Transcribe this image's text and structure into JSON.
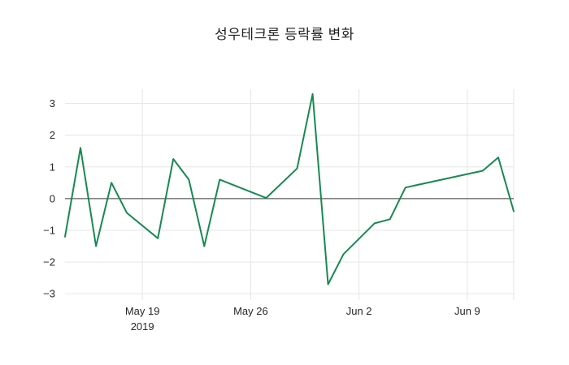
{
  "chart_data": {
    "type": "line",
    "title": "성우테크론 등락률 변화",
    "xlabel": "",
    "ylabel": "",
    "grid": true,
    "zero_line": true,
    "legend": "none",
    "line_color": "#178a50",
    "grid_color": "#e6e6e6",
    "zero_line_color": "#3a3a3a",
    "tick_color": "#262626",
    "ylim": [
      -3.2,
      3.45
    ],
    "y_ticks": [
      -3,
      -2,
      -1,
      0,
      1,
      2,
      3
    ],
    "x_range": [
      "2019-05-14",
      "2019-06-12"
    ],
    "x_ticks": [
      {
        "date": "2019-05-19",
        "label": "May 19",
        "sublabel": "2019"
      },
      {
        "date": "2019-05-26",
        "label": "May 26",
        "sublabel": ""
      },
      {
        "date": "2019-06-02",
        "label": "Jun 2",
        "sublabel": ""
      },
      {
        "date": "2019-06-09",
        "label": "Jun 9",
        "sublabel": ""
      }
    ],
    "series": [
      {
        "name": "등락률",
        "x": [
          "2019-05-14",
          "2019-05-15",
          "2019-05-16",
          "2019-05-17",
          "2019-05-18",
          "2019-05-20",
          "2019-05-21",
          "2019-05-22",
          "2019-05-23",
          "2019-05-24",
          "2019-05-27",
          "2019-05-29",
          "2019-05-30",
          "2019-05-31",
          "2019-06-01",
          "2019-06-03",
          "2019-06-04",
          "2019-06-05",
          "2019-06-10",
          "2019-06-11",
          "2019-06-12"
        ],
        "values": [
          -1.2,
          1.6,
          -1.5,
          0.5,
          -0.45,
          -1.25,
          1.25,
          0.6,
          -1.5,
          0.6,
          0.02,
          0.95,
          3.3,
          -2.7,
          -1.75,
          -0.78,
          -0.65,
          0.35,
          0.88,
          1.3,
          -0.4
        ]
      }
    ]
  }
}
